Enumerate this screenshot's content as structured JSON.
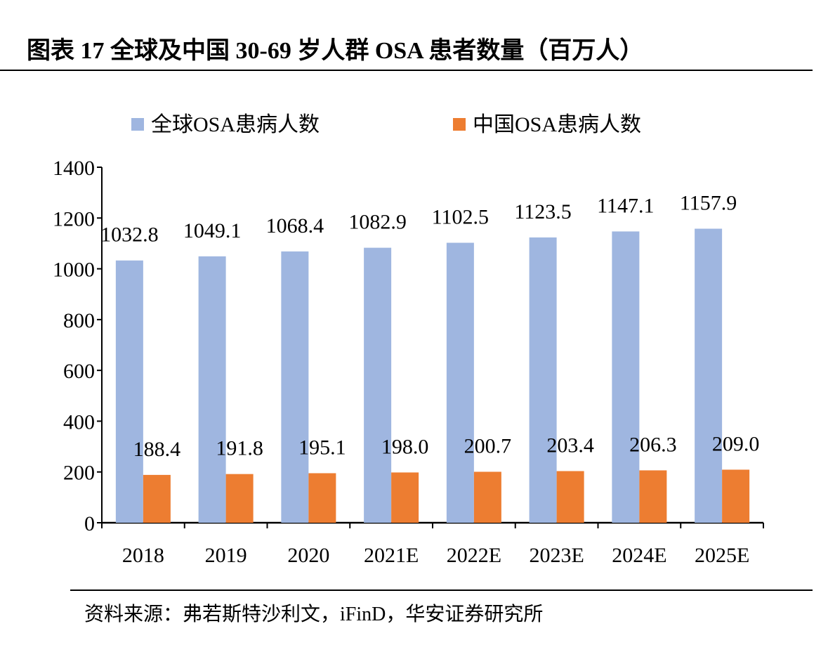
{
  "title": "图表 17 全球及中国 30-69 岁人群 OSA 患者数量（百万人）",
  "source": "资料来源：弗若斯特沙利文，iFinD，华安证券研究所",
  "chart_data": {
    "type": "bar",
    "title": "",
    "xlabel": "",
    "ylabel": "",
    "categories": [
      "2018",
      "2019",
      "2020",
      "2021E",
      "2022E",
      "2023E",
      "2024E",
      "2025E"
    ],
    "series": [
      {
        "name": "全球OSA患病人数",
        "color": "#9FB6E0",
        "values": [
          1032.8,
          1049.1,
          1068.4,
          1082.9,
          1102.5,
          1123.5,
          1147.1,
          1157.9
        ]
      },
      {
        "name": "中国OSA患病人数",
        "color": "#ED7D31",
        "values": [
          188.4,
          191.8,
          195.1,
          198.0,
          200.7,
          203.4,
          206.3,
          209.0
        ]
      }
    ],
    "ylim": [
      0,
      1400
    ],
    "yticks": [
      0,
      200,
      400,
      600,
      800,
      1000,
      1200,
      1400
    ],
    "legend": "top",
    "grid": false,
    "data_labels": true
  }
}
